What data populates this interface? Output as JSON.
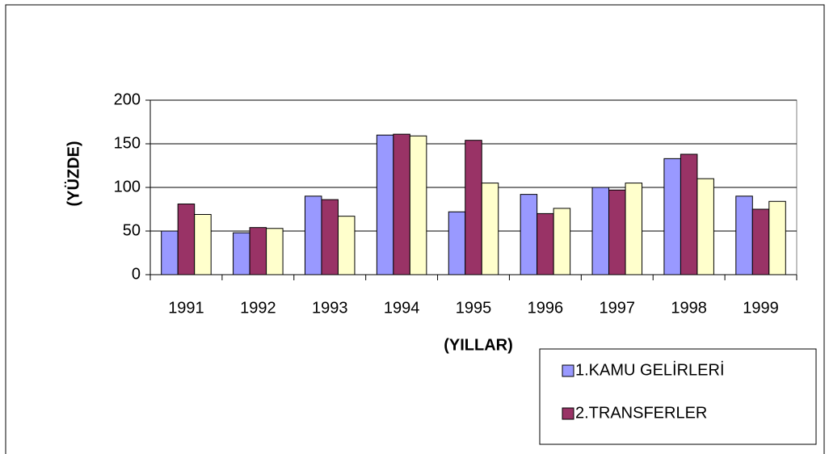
{
  "chart_data": {
    "type": "bar",
    "x_label": "(YILLAR)",
    "y_label": "(YÜZDE)",
    "categories": [
      "1991",
      "1992",
      "1993",
      "1994",
      "1995",
      "1996",
      "1997",
      "1998",
      "1999"
    ],
    "series": [
      {
        "name": "1.KAMU GELİRLERİ",
        "color": "#9999ff",
        "values": [
          50,
          48,
          90,
          160,
          72,
          92,
          100,
          133,
          90
        ]
      },
      {
        "name": "2.TRANSFERLER",
        "color": "#993366",
        "values": [
          81,
          54,
          86,
          161,
          154,
          70,
          97,
          138,
          75
        ]
      },
      {
        "color": "#ffffcc",
        "values": [
          69,
          53,
          67,
          159,
          105,
          76,
          105,
          110,
          84
        ]
      }
    ],
    "ylim": [
      0,
      200
    ],
    "yticks": [
      0,
      50,
      100,
      150,
      200
    ],
    "grid": true
  }
}
